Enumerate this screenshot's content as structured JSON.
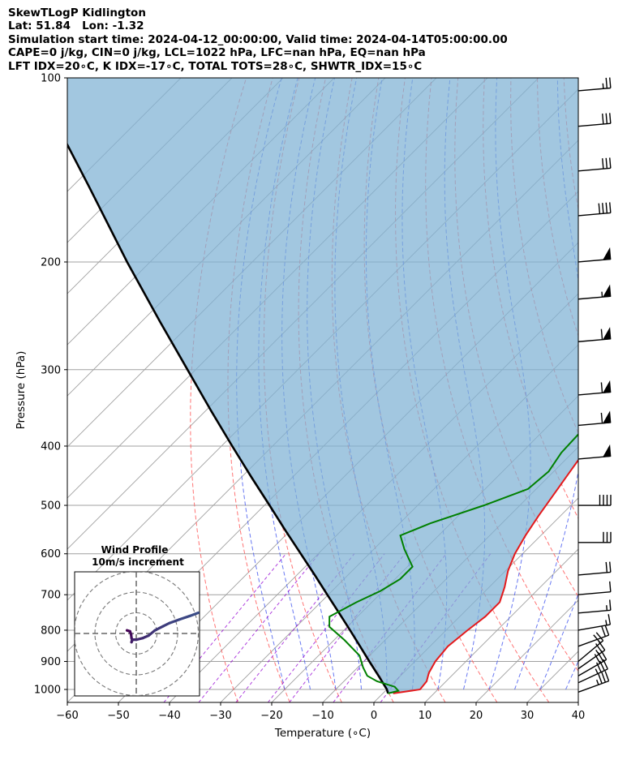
{
  "header": {
    "line1": "SkewTLogP Kidlington",
    "line2": "Lat: 51.84   Lon: -1.32",
    "line3": "Simulation start time: 2024-04-12_00:00:00, Valid time: 2024-04-14T05:00:00.00",
    "line4": "CAPE=0 j/kg, CIN=0 j/kg, LCL=1022 hPa, LFC=nan hPa, EQ=nan hPa",
    "line5": "LFT IDX=20$^\\circ$C, K IDX=-17$^\\circ$C, TOTAL TOTS=28$^\\circ$C, SHWTR_IDX=15$^\\circ$C",
    "line5_display": "LFT IDX=20∘C, K IDX=-17∘C, TOTAL TOTS=28∘C, SHWTR_IDX=15∘C"
  },
  "colors": {
    "temperature": "#e41a1c",
    "dewpoint": "#008000",
    "parcel": "#000000",
    "cape_fill": "#7eb1d4",
    "dry_adiabat": "#ff5050",
    "moist_adiabat": "#4c5ff0",
    "mixing_ratio": "#9400d3",
    "isotherm": "#a0a0a0",
    "isobar": "#a0a0a0",
    "hodograph": "#3b528b"
  },
  "chart_data": {
    "type": "skewt",
    "title": "SkewTLogP Kidlington",
    "xlabel": "Temperature ($^\\circ$C)",
    "xlabel_display": "Temperature (∘C)",
    "ylabel": "Pressure (hPa)",
    "xlim": [
      -60,
      40
    ],
    "ylim": [
      1050,
      100
    ],
    "xticks": [
      -60,
      -50,
      -40,
      -30,
      -20,
      -10,
      0,
      10,
      20,
      30,
      40
    ],
    "xtick_labels": [
      "−60",
      "−50",
      "−40",
      "−30",
      "−20",
      "−10",
      "0",
      "10",
      "20",
      "30",
      "40"
    ],
    "yticks": [
      1000,
      900,
      800,
      700,
      600,
      500,
      400,
      300,
      200,
      100
    ],
    "ytick_labels": [
      "1000",
      "900",
      "800",
      "700",
      "600",
      "500",
      "400",
      "300",
      "200",
      "100"
    ],
    "grid": true,
    "temperature_profile": [
      [
        1015,
        2.0
      ],
      [
        1000,
        6.5
      ],
      [
        970,
        6.2
      ],
      [
        940,
        5.0
      ],
      [
        900,
        4.0
      ],
      [
        850,
        3.5
      ],
      [
        800,
        4.2
      ],
      [
        760,
        5.0
      ],
      [
        720,
        5.0
      ],
      [
        680,
        3.0
      ],
      [
        640,
        0.5
      ],
      [
        600,
        -1.5
      ],
      [
        560,
        -3.0
      ],
      [
        520,
        -4.3
      ],
      [
        480,
        -5.5
      ],
      [
        440,
        -6.8
      ],
      [
        400,
        -8.2
      ],
      [
        370,
        -9.0
      ],
      [
        340,
        -9.4
      ],
      [
        320,
        -10.8
      ],
      [
        300,
        -12.8
      ],
      [
        280,
        -14.7
      ],
      [
        260,
        -16.4
      ],
      [
        240,
        -17.7
      ],
      [
        225,
        -17.4
      ],
      [
        210,
        -15.6
      ],
      [
        195,
        -14.6
      ],
      [
        180,
        -13.9
      ],
      [
        165,
        -11.6
      ],
      [
        155,
        -9.9
      ],
      [
        145,
        -11.0
      ],
      [
        135,
        -12.0
      ],
      [
        122,
        -14.0
      ],
      [
        110,
        -16.0
      ],
      [
        100,
        -17.5
      ]
    ],
    "dewpoint_profile": [
      [
        1015,
        1.0
      ],
      [
        1005,
        2.5
      ],
      [
        990,
        1.0
      ],
      [
        970,
        -3.5
      ],
      [
        950,
        -6.5
      ],
      [
        920,
        -9.0
      ],
      [
        880,
        -12.0
      ],
      [
        830,
        -18.0
      ],
      [
        790,
        -23.5
      ],
      [
        760,
        -25.5
      ],
      [
        720,
        -23.0
      ],
      [
        690,
        -20.5
      ],
      [
        660,
        -19.0
      ],
      [
        630,
        -19.0
      ],
      [
        590,
        -24.0
      ],
      [
        560,
        -27.5
      ],
      [
        535,
        -24.0
      ],
      [
        500,
        -17.0
      ],
      [
        470,
        -11.6
      ],
      [
        440,
        -11.0
      ],
      [
        410,
        -12.2
      ],
      [
        380,
        -12.5
      ],
      [
        350,
        -12.2
      ],
      [
        320,
        -14.8
      ],
      [
        300,
        -18.0
      ],
      [
        280,
        -20.3
      ],
      [
        260,
        -23.2
      ],
      [
        240,
        -25.5
      ],
      [
        225,
        -26.5
      ],
      [
        210,
        -30.0
      ],
      [
        200,
        -32.0
      ],
      [
        190,
        -33.8
      ],
      [
        182,
        -35.5
      ],
      [
        172,
        -38.0
      ],
      [
        164,
        -40.5
      ],
      [
        157,
        -43.0
      ],
      [
        148,
        -43.8
      ],
      [
        140,
        -44.0
      ],
      [
        130,
        -44.0
      ],
      [
        120,
        -44.0
      ],
      [
        110,
        -44.0
      ],
      [
        100,
        -44.0
      ]
    ],
    "parcel_profile": [
      [
        1015,
        1.0
      ],
      [
        1000,
        0.0
      ],
      [
        950,
        -4.3
      ],
      [
        900,
        -8.9
      ],
      [
        850,
        -13.7
      ],
      [
        800,
        -18.8
      ],
      [
        750,
        -24.3
      ],
      [
        700,
        -30.2
      ],
      [
        650,
        -36.5
      ],
      [
        600,
        -43.4
      ],
      [
        550,
        -50.9
      ],
      [
        500,
        -59.0
      ],
      [
        450,
        -68.0
      ],
      [
        400,
        -77.9
      ],
      [
        350,
        -89.0
      ],
      [
        300,
        -101.6
      ],
      [
        250,
        -116.5
      ],
      [
        200,
        -134.5
      ],
      [
        150,
        -157.0
      ],
      [
        100,
        -189.0
      ]
    ],
    "cape_region": "shaded between parcel (left) and temperature (right)",
    "wind_barbs": [
      {
        "p": 1010,
        "dir": 250,
        "kt": 35
      },
      {
        "p": 975,
        "dir": 245,
        "kt": 35
      },
      {
        "p": 950,
        "dir": 240,
        "kt": 30
      },
      {
        "p": 925,
        "dir": 235,
        "kt": 25
      },
      {
        "p": 900,
        "dir": 230,
        "kt": 20
      },
      {
        "p": 850,
        "dir": 250,
        "kt": 20
      },
      {
        "p": 800,
        "dir": 260,
        "kt": 15
      },
      {
        "p": 750,
        "dir": 265,
        "kt": 15
      },
      {
        "p": 700,
        "dir": 265,
        "kt": 10
      },
      {
        "p": 650,
        "dir": 265,
        "kt": 20
      },
      {
        "p": 575,
        "dir": 270,
        "kt": 30
      },
      {
        "p": 500,
        "dir": 270,
        "kt": 40
      },
      {
        "p": 420,
        "dir": 265,
        "kt": 50
      },
      {
        "p": 370,
        "dir": 265,
        "kt": 60
      },
      {
        "p": 330,
        "dir": 265,
        "kt": 60
      },
      {
        "p": 270,
        "dir": 265,
        "kt": 60
      },
      {
        "p": 230,
        "dir": 265,
        "kt": 55
      },
      {
        "p": 200,
        "dir": 265,
        "kt": 50
      },
      {
        "p": 168,
        "dir": 265,
        "kt": 40
      },
      {
        "p": 142,
        "dir": 265,
        "kt": 30
      },
      {
        "p": 120,
        "dir": 265,
        "kt": 30
      },
      {
        "p": 105,
        "dir": 265,
        "kt": 25
      }
    ],
    "hodograph": {
      "title": "Wind Profile",
      "subtitle": "10m/s increment",
      "ring_spacing_ms": 10,
      "points": [
        [
          -4.5,
          1.5
        ],
        [
          -3.0,
          1.0
        ],
        [
          -2.5,
          -0.5
        ],
        [
          -2.3,
          -2.2
        ],
        [
          -2.0,
          -3.0
        ],
        [
          -2.3,
          -4.2
        ],
        [
          -1.8,
          -3.0
        ],
        [
          0,
          -3.0
        ],
        [
          3.0,
          -2.3
        ],
        [
          6.0,
          -1.0
        ],
        [
          9.0,
          1.5
        ],
        [
          13.0,
          3.5
        ],
        [
          16.0,
          5.0
        ],
        [
          21.0,
          6.8
        ],
        [
          26.0,
          8.5
        ],
        [
          30.0,
          10.0
        ]
      ]
    }
  }
}
